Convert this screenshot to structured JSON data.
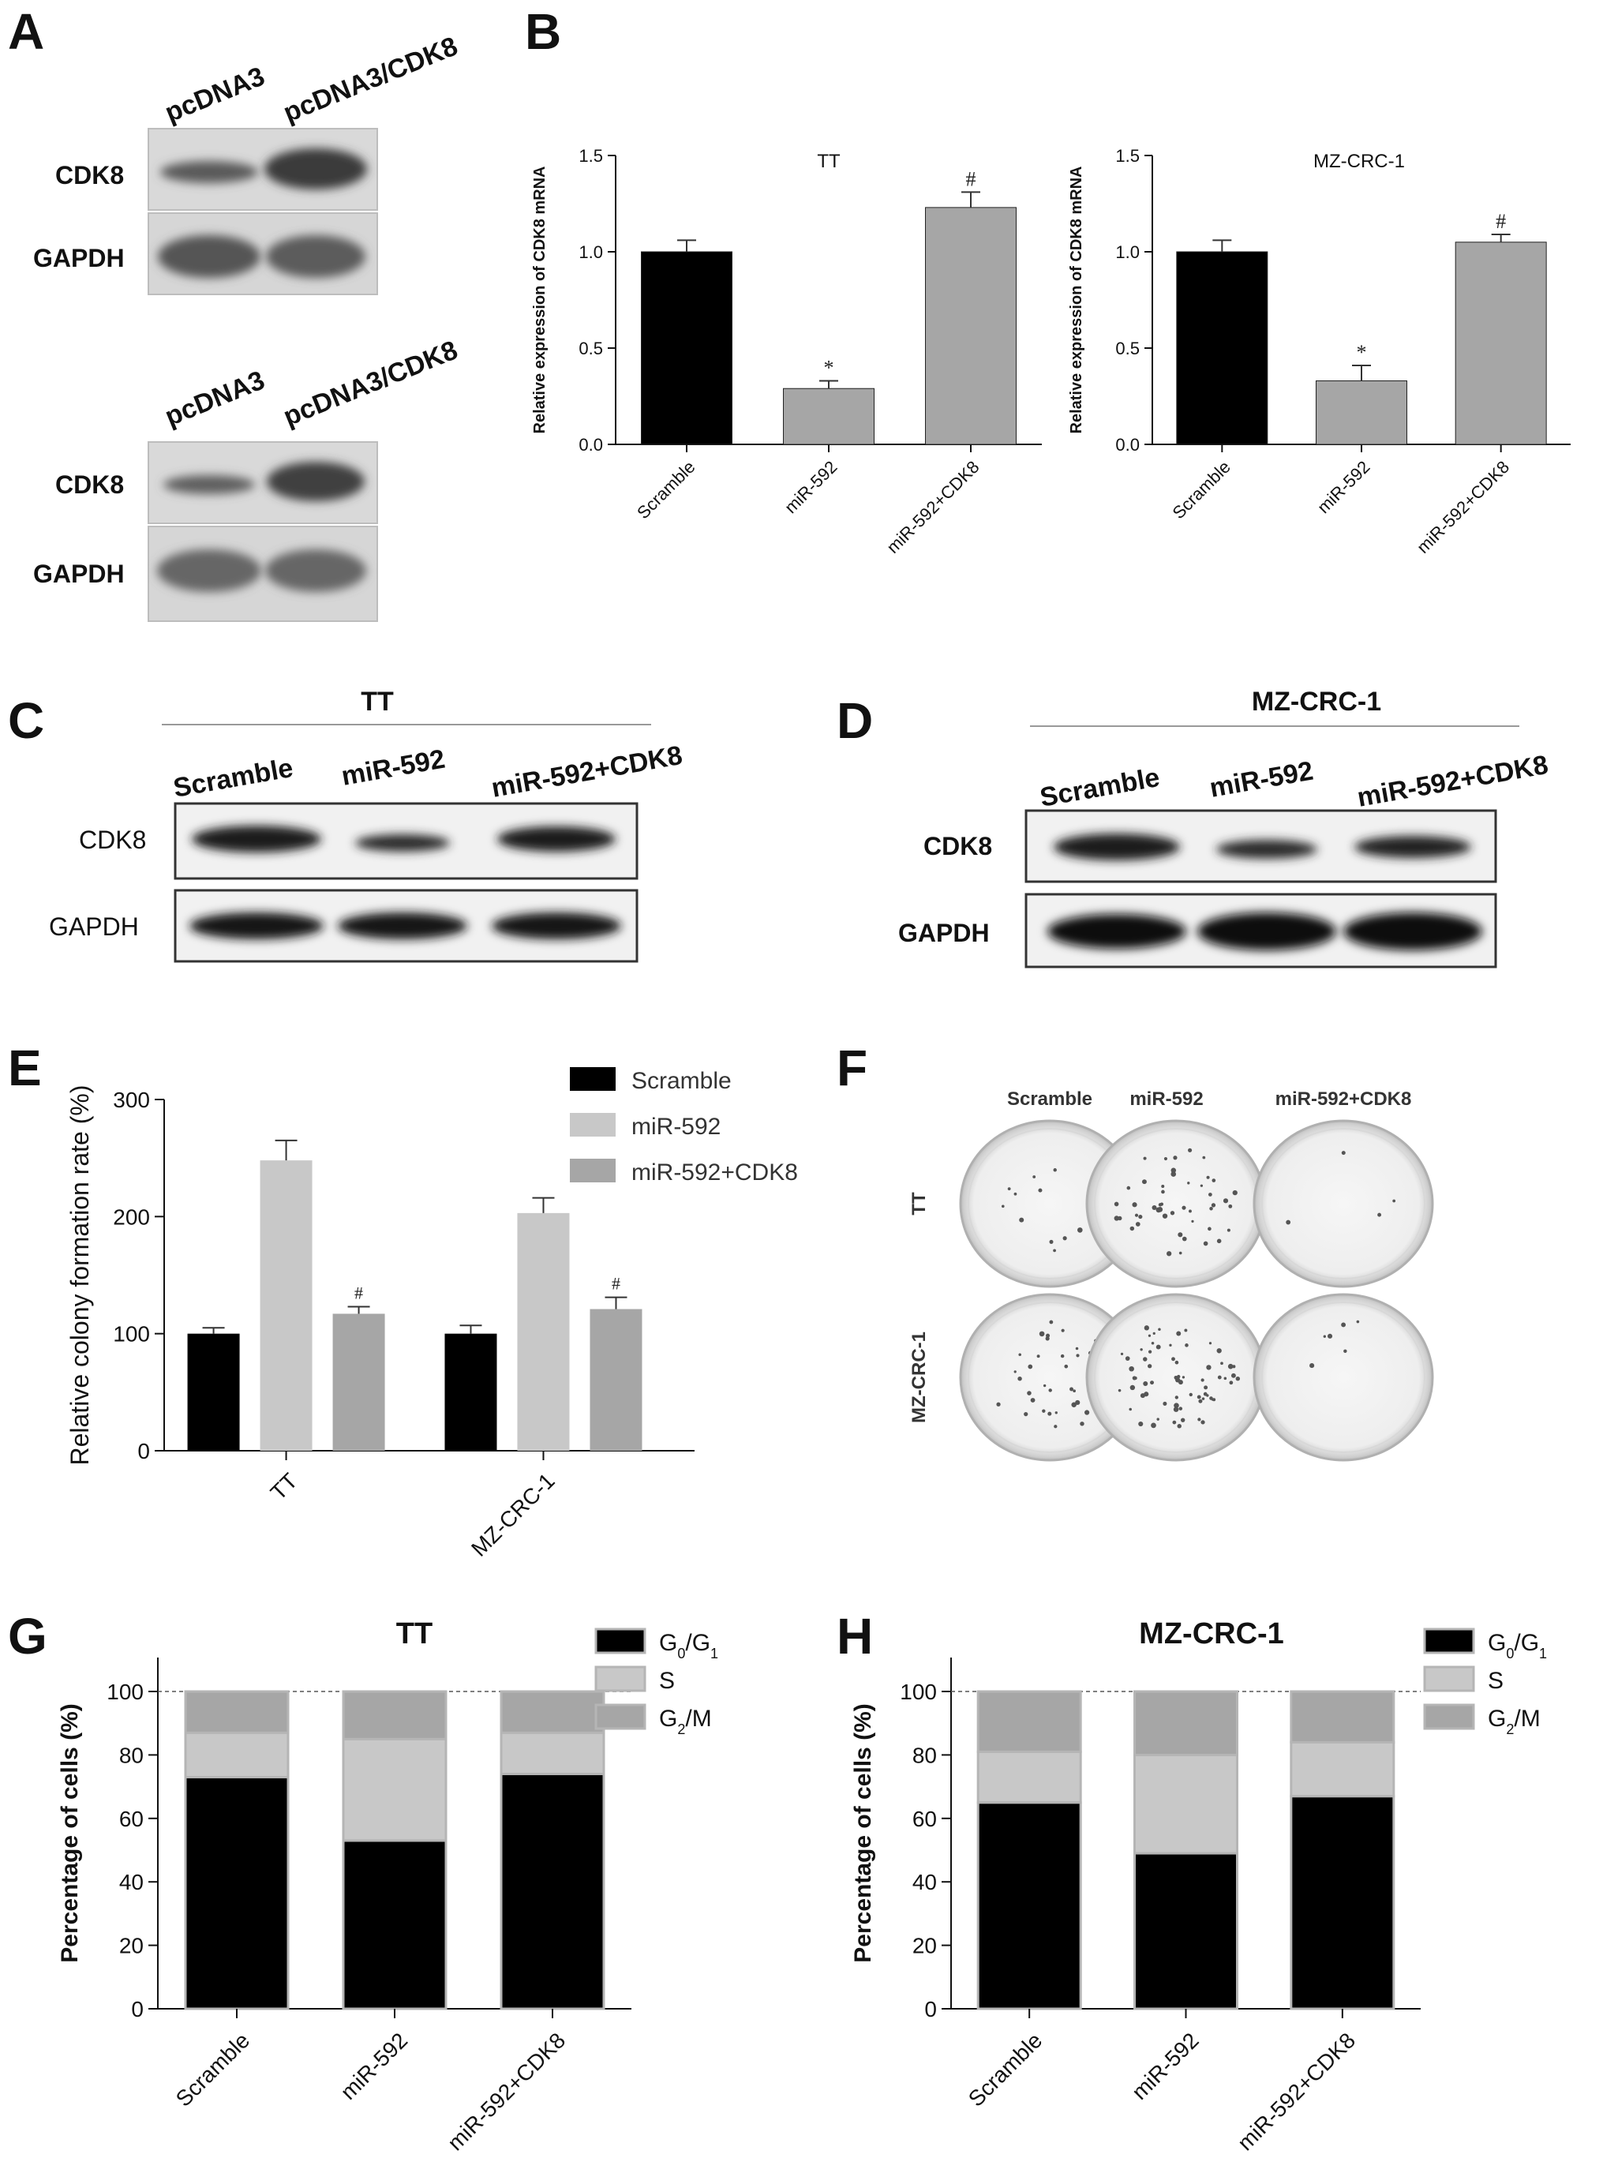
{
  "panels": {
    "A": {
      "label": "A",
      "blots": [
        {
          "lanes": [
            "pcDNA3",
            "pcDNA3/CDK8"
          ],
          "rows": [
            "CDK8",
            "GAPDH"
          ]
        },
        {
          "lanes": [
            "pcDNA3",
            "pcDNA3/CDK8"
          ],
          "rows": [
            "CDK8",
            "GAPDH"
          ]
        }
      ]
    },
    "B": {
      "label": "B"
    },
    "C": {
      "label": "C",
      "cell_line": "TT",
      "lanes": [
        "Scramble",
        "miR-592",
        "miR-592+CDK8"
      ],
      "rows": [
        "CDK8",
        "GAPDH"
      ]
    },
    "D": {
      "label": "D",
      "cell_line": "MZ-CRC-1",
      "lanes": [
        "Scramble",
        "miR-592",
        "miR-592+CDK8"
      ],
      "rows": [
        "CDK8",
        "GAPDH"
      ]
    },
    "E": {
      "label": "E"
    },
    "F": {
      "label": "F",
      "columns": [
        "Scramble",
        "miR-592",
        "miR-592+CDK8"
      ],
      "rows": [
        "TT",
        "MZ-CRC-1"
      ]
    },
    "G": {
      "label": "G"
    },
    "H": {
      "label": "H"
    }
  },
  "colors": {
    "black": "#000000",
    "light_gray": "#c8c8c8",
    "mid_gray": "#a6a6a6"
  },
  "chart_data": [
    {
      "id": "B-TT",
      "type": "bar",
      "title": "TT",
      "ylabel": "Relative expression of CDK8 mRNA",
      "categories": [
        "Scramble",
        "miR-592",
        "miR-592+CDK8"
      ],
      "values": [
        1.0,
        0.29,
        1.23
      ],
      "errors": [
        0.06,
        0.04,
        0.08
      ],
      "annotations": [
        "",
        "*",
        "#"
      ],
      "ylim": [
        0,
        1.5
      ],
      "yticks": [
        "0.0",
        "0.5",
        "1.0",
        "1.5"
      ],
      "bar_colors": [
        "#000000",
        "#a6a6a6",
        "#a6a6a6"
      ]
    },
    {
      "id": "B-MZ",
      "type": "bar",
      "title": "MZ-CRC-1",
      "ylabel": "Relative expression of CDK8 mRNA",
      "categories": [
        "Scramble",
        "miR-592",
        "miR-592+CDK8"
      ],
      "values": [
        1.0,
        0.33,
        1.05
      ],
      "errors": [
        0.06,
        0.08,
        0.04
      ],
      "annotations": [
        "",
        "*",
        "#"
      ],
      "ylim": [
        0,
        1.5
      ],
      "yticks": [
        "0.0",
        "0.5",
        "1.0",
        "1.5"
      ],
      "bar_colors": [
        "#000000",
        "#a6a6a6",
        "#a6a6a6"
      ]
    },
    {
      "id": "E",
      "type": "bar",
      "ylabel": "Relative colony formation rate (%)",
      "categories": [
        "TT",
        "MZ-CRC-1"
      ],
      "series": [
        {
          "name": "Scramble",
          "values": [
            100,
            100
          ],
          "errors": [
            5,
            7
          ],
          "annotations": [
            "",
            ""
          ],
          "color": "#000000"
        },
        {
          "name": "miR-592",
          "values": [
            248,
            203
          ],
          "errors": [
            17,
            13
          ],
          "annotations": [
            "",
            ""
          ],
          "color": "#c8c8c8"
        },
        {
          "name": "miR-592+CDK8",
          "values": [
            117,
            121
          ],
          "errors": [
            6,
            10
          ],
          "annotations": [
            "#",
            "#"
          ],
          "color": "#a6a6a6"
        }
      ],
      "ylim": [
        0,
        300
      ],
      "yticks": [
        "0",
        "100",
        "200",
        "300"
      ],
      "legend": "top-right"
    },
    {
      "id": "G",
      "type": "bar",
      "stacked": true,
      "title": "TT",
      "ylabel": "Percentage of cells (%)",
      "categories": [
        "Scramble",
        "miR-592",
        "miR-592+CDK8"
      ],
      "series": [
        {
          "name": "G0/G1",
          "values": [
            73,
            53,
            74
          ],
          "color": "#000000"
        },
        {
          "name": "S",
          "values": [
            14,
            32,
            13
          ],
          "color": "#c8c8c8"
        },
        {
          "name": "G2/M",
          "values": [
            13,
            15,
            13
          ],
          "color": "#a6a6a6"
        }
      ],
      "ylim": [
        0,
        100
      ],
      "yticks": [
        "0",
        "20",
        "40",
        "60",
        "80",
        "100"
      ],
      "reference_line": 100,
      "legend": "top-right"
    },
    {
      "id": "H",
      "type": "bar",
      "stacked": true,
      "title": "MZ-CRC-1",
      "ylabel": "Percentage of cells (%)",
      "categories": [
        "Scramble",
        "miR-592",
        "miR-592+CDK8"
      ],
      "series": [
        {
          "name": "G0/G1",
          "values": [
            65,
            49,
            67
          ],
          "color": "#000000"
        },
        {
          "name": "S",
          "values": [
            16,
            31,
            17
          ],
          "color": "#c8c8c8"
        },
        {
          "name": "G2/M",
          "values": [
            19,
            20,
            16
          ],
          "color": "#a6a6a6"
        }
      ],
      "ylim": [
        0,
        100
      ],
      "yticks": [
        "0",
        "20",
        "40",
        "60",
        "80",
        "100"
      ],
      "reference_line": 100,
      "legend": "top-right"
    }
  ]
}
